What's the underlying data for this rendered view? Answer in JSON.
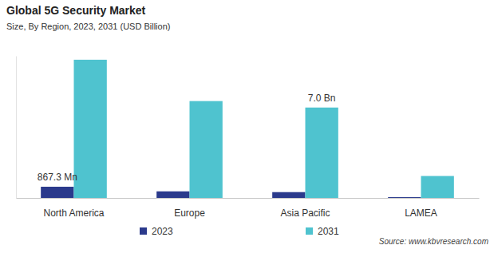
{
  "chart_data": {
    "type": "bar",
    "title": "Global 5G Security Market",
    "subtitle": "Size, By Region, 2023, 2031 (USD Billion)",
    "source": "Source: www.kbvresearch.com",
    "categories": [
      "North America",
      "Europe",
      "Asia Pacific",
      "LAMEA"
    ],
    "series": [
      {
        "name": "2023",
        "color": "#2b3a8c",
        "values": [
          0.8673,
          0.51,
          0.45,
          0.06
        ],
        "value_labels": [
          "867.3  Mn",
          null,
          null,
          null
        ]
      },
      {
        "name": "2031",
        "color": "#4fc3cf",
        "values": [
          10.7,
          7.5,
          7.0,
          1.7
        ],
        "value_labels": [
          null,
          null,
          "7.0 Bn",
          null
        ]
      }
    ],
    "ylim": [
      0,
      11
    ],
    "yticks": [],
    "tick_labels": "x",
    "grid": false,
    "legend": "bottom",
    "data_labels": true
  }
}
